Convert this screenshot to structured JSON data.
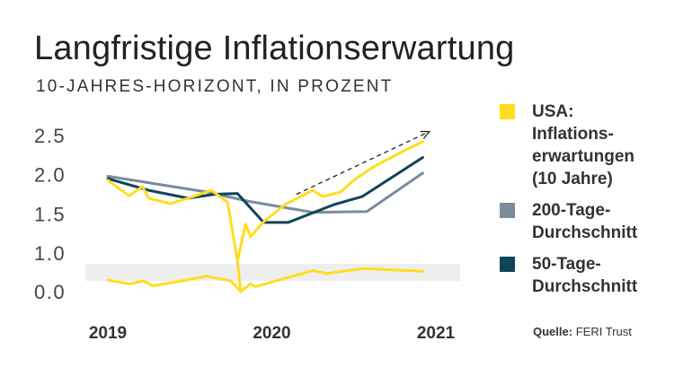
{
  "title": "Langfristige Inflationserwartung",
  "subtitle": "10-JAHRES-HORIZONT, IN PROZENT",
  "source": {
    "label": "Quelle:",
    "value": "FERI Trust"
  },
  "colors": {
    "usa": "#FFDD1E",
    "ma200": "#7A8B9F",
    "ma50": "#0F4559",
    "band": "#EEEEEE",
    "axis_text": "#444444",
    "trend_arrow": "#222222"
  },
  "chart_data": {
    "type": "line",
    "title": "Langfristige Inflationserwartung",
    "subtitle": "10-JAHRES-HORIZONT, IN PROZENT",
    "xlabel": "",
    "ylabel": "",
    "x_ticks": [
      "2019",
      "2020",
      "2021"
    ],
    "x_tick_values": [
      2019.0,
      2020.0,
      2021.0
    ],
    "xlim": [
      2019.0,
      2021.0
    ],
    "y_ticks": [
      "0.0",
      "1.0",
      "1.5",
      "2.0",
      "2.5"
    ],
    "y_tick_values": [
      0.0,
      1.0,
      1.5,
      2.0,
      2.5
    ],
    "ylim": [
      0.0,
      2.5
    ],
    "axis_break": {
      "between": [
        0.0,
        1.0
      ],
      "note": "shaded band marks the axis break"
    },
    "grid": false,
    "legend_position": "right",
    "series": [
      {
        "name": "USA: Inflationserwartungen (10 Jahre)",
        "color": "#FFDD1E",
        "points": [
          [
            2019.0,
            1.93
          ],
          [
            2019.13,
            1.73
          ],
          [
            2019.21,
            1.85
          ],
          [
            2019.25,
            1.7
          ],
          [
            2019.38,
            1.63
          ],
          [
            2019.52,
            1.72
          ],
          [
            2019.63,
            1.8
          ],
          [
            2019.73,
            1.65
          ],
          [
            2019.79,
            0.8
          ],
          [
            2019.84,
            1.37
          ],
          [
            2019.87,
            1.21
          ],
          [
            2019.95,
            1.4
          ],
          [
            2020.08,
            1.62
          ],
          [
            2020.25,
            1.8
          ],
          [
            2020.31,
            1.72
          ],
          [
            2020.42,
            1.78
          ],
          [
            2020.5,
            1.93
          ],
          [
            2020.62,
            2.1
          ],
          [
            2020.8,
            2.3
          ],
          [
            2020.92,
            2.42
          ]
        ]
      },
      {
        "name": "200-Tage-Durchschnitt",
        "color": "#7A8B9F",
        "points": [
          [
            2019.0,
            1.98
          ],
          [
            2019.6,
            1.78
          ],
          [
            2019.86,
            1.66
          ],
          [
            2020.25,
            1.52
          ],
          [
            2020.58,
            1.53
          ],
          [
            2020.92,
            2.02
          ]
        ]
      },
      {
        "name": "50-Tage-Durchschnitt",
        "color": "#0F4559",
        "points": [
          [
            2019.0,
            1.95
          ],
          [
            2019.25,
            1.8
          ],
          [
            2019.49,
            1.7
          ],
          [
            2019.65,
            1.75
          ],
          [
            2019.79,
            1.76
          ],
          [
            2019.95,
            1.39
          ],
          [
            2020.1,
            1.39
          ],
          [
            2020.38,
            1.62
          ],
          [
            2020.55,
            1.72
          ],
          [
            2020.92,
            2.22
          ]
        ]
      }
    ],
    "lower_segment": {
      "series": "USA: Inflationserwartungen (10 Jahre)",
      "color": "#FFDD1E",
      "note": "values plotted in the shaded band below the axis break",
      "points": [
        [
          2019.0,
          0.3
        ],
        [
          2019.13,
          0.2
        ],
        [
          2019.22,
          0.28
        ],
        [
          2019.27,
          0.15
        ],
        [
          2019.48,
          0.3
        ],
        [
          2019.6,
          0.4
        ],
        [
          2019.75,
          0.28
        ],
        [
          2019.81,
          0.0
        ],
        [
          2019.87,
          0.2
        ],
        [
          2019.9,
          0.13
        ],
        [
          2020.25,
          0.55
        ],
        [
          2020.33,
          0.47
        ],
        [
          2020.56,
          0.6
        ],
        [
          2020.92,
          0.53
        ]
      ]
    },
    "annotations": [
      {
        "type": "dashed-arrow",
        "from": [
          2020.15,
          1.75
        ],
        "to": [
          2020.96,
          2.55
        ]
      }
    ]
  },
  "legend": {
    "items": [
      {
        "label": "USA:\nInflations-\nerwartungen\n(10 Jahre)",
        "color": "#FFDD1E"
      },
      {
        "label": "200-Tage-\nDurchschnitt",
        "color": "#7A8B9F"
      },
      {
        "label": "50-Tage-\nDurchschnitt",
        "color": "#0F4559"
      }
    ]
  }
}
